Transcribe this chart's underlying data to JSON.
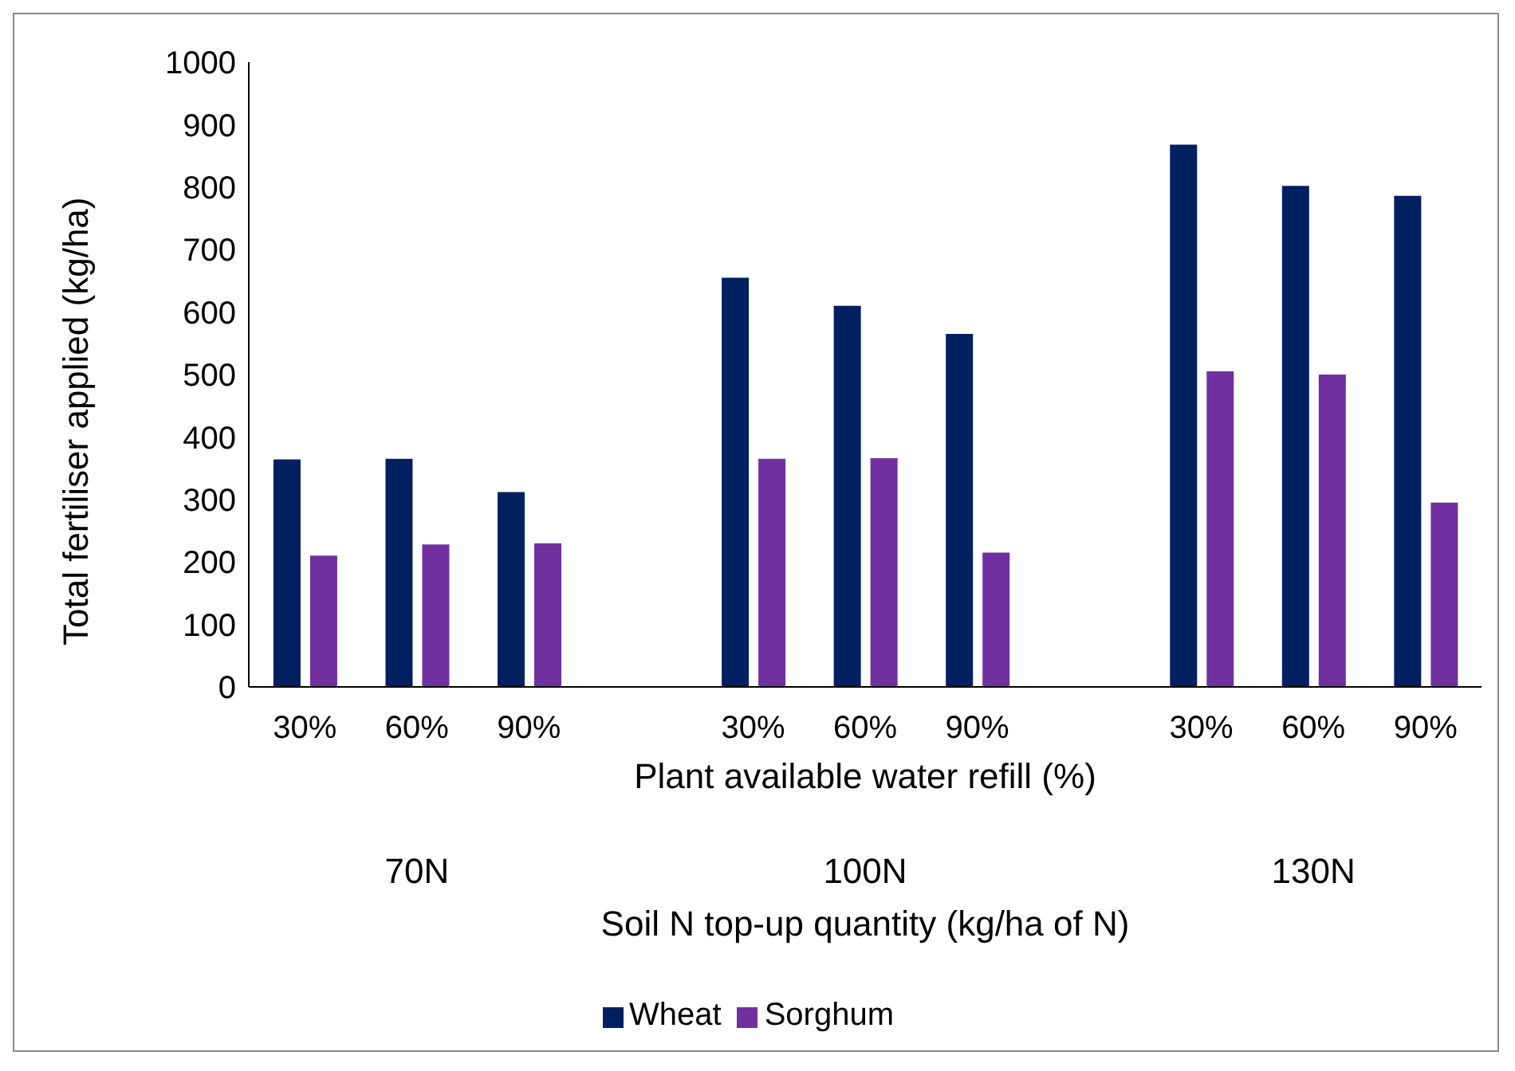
{
  "chart_data": {
    "type": "bar",
    "xlabel": "Plant available water refill (%)",
    "ylabel": "Total fertiliser applied (kg/ha)",
    "categories": [
      "30%",
      "60%",
      "90%",
      null,
      "30%",
      "60%",
      "90%",
      null,
      "30%",
      "60%",
      "90%"
    ],
    "series": [
      {
        "name": "Wheat",
        "color": "#002060",
        "values": [
          364,
          365,
          312,
          null,
          655,
          610,
          565,
          null,
          868,
          802,
          786
        ]
      },
      {
        "name": "Sorghum",
        "color": "#7030a0",
        "values": [
          210,
          228,
          230,
          null,
          365,
          366,
          215,
          null,
          505,
          500,
          295
        ]
      }
    ],
    "ylim": [
      0,
      1000
    ],
    "yticks": [
      0,
      100,
      200,
      300,
      400,
      500,
      600,
      700,
      800,
      900,
      1000
    ],
    "legend": "bottom",
    "annotations": [
      "70N",
      "100N",
      "130N",
      "Soil N top-up quantity (kg/ha of N)"
    ]
  }
}
